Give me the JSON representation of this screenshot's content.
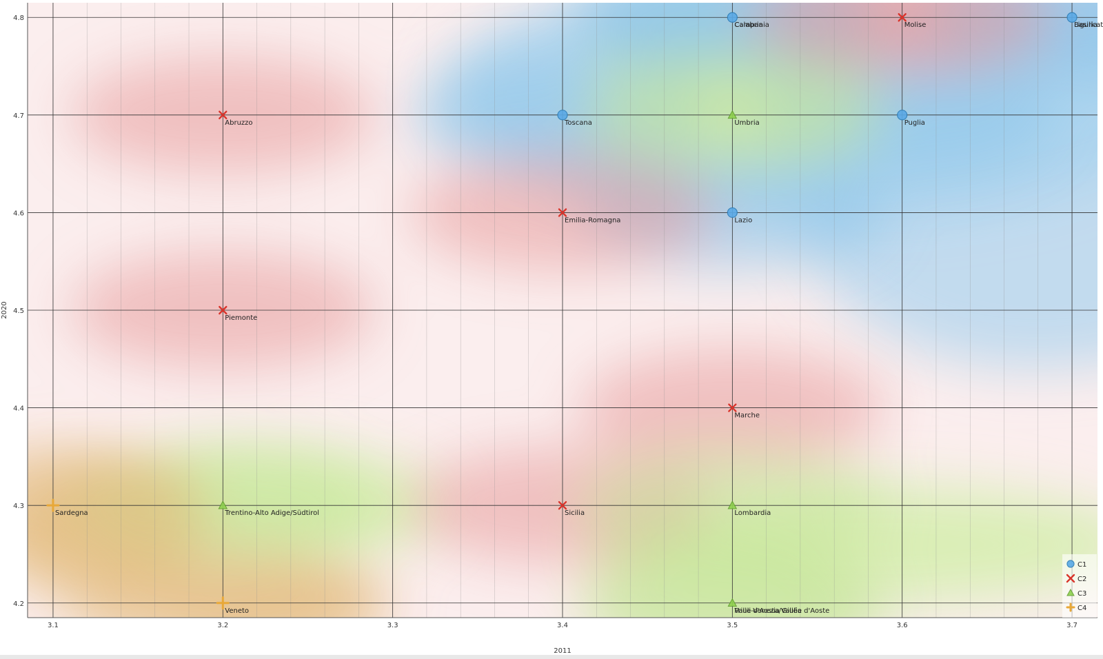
{
  "chart_data": {
    "type": "scatter",
    "xlabel": "2011",
    "ylabel": "2020",
    "xlim": [
      3.085,
      3.715
    ],
    "ylim": [
      4.185,
      4.815
    ],
    "x_ticks": [
      "3.1",
      "3.2",
      "3.3",
      "3.4",
      "3.5",
      "3.6",
      "3.7"
    ],
    "y_ticks": [
      "4.2",
      "4.3",
      "4.4",
      "4.5",
      "4.6",
      "4.7",
      "4.8"
    ],
    "grid": true,
    "legend_position": "bottom-right",
    "series": [
      {
        "name": "C1",
        "marker": "circle",
        "color": "#5aa9e6",
        "points": [
          {
            "label": "Calabria",
            "x": 3.5,
            "y": 4.8
          },
          {
            "label": "Campania",
            "x": 3.5,
            "y": 4.8
          },
          {
            "label": "Basilicata",
            "x": 3.7,
            "y": 4.8
          },
          {
            "label": "Liguria",
            "x": 3.7,
            "y": 4.8
          },
          {
            "label": "Toscana",
            "x": 3.4,
            "y": 4.7
          },
          {
            "label": "Puglia",
            "x": 3.6,
            "y": 4.7
          },
          {
            "label": "Lazio",
            "x": 3.5,
            "y": 4.6
          }
        ]
      },
      {
        "name": "C2",
        "marker": "cross",
        "color": "#d9342b",
        "points": [
          {
            "label": "Molise",
            "x": 3.6,
            "y": 4.8
          },
          {
            "label": "Abruzzo",
            "x": 3.2,
            "y": 4.7
          },
          {
            "label": "Emilia-Romagna",
            "x": 3.4,
            "y": 4.6
          },
          {
            "label": "Piemonte",
            "x": 3.2,
            "y": 4.5
          },
          {
            "label": "Marche",
            "x": 3.5,
            "y": 4.4
          },
          {
            "label": "Sicilia",
            "x": 3.4,
            "y": 4.3
          }
        ]
      },
      {
        "name": "C3",
        "marker": "triangle",
        "color": "#8fd14f",
        "points": [
          {
            "label": "Umbria",
            "x": 3.5,
            "y": 4.7
          },
          {
            "label": "Trentino-Alto Adige/Südtirol",
            "x": 3.2,
            "y": 4.3
          },
          {
            "label": "Lombardia",
            "x": 3.5,
            "y": 4.3
          },
          {
            "label": "Friuli-Venezia Giulia",
            "x": 3.5,
            "y": 4.2
          },
          {
            "label": "Valle d'Aosta/Vallée d'Aoste",
            "x": 3.5,
            "y": 4.2
          }
        ]
      },
      {
        "name": "C4",
        "marker": "plus",
        "color": "#e8a838",
        "points": [
          {
            "label": "Sardegna",
            "x": 3.1,
            "y": 4.3
          },
          {
            "label": "Veneto",
            "x": 3.2,
            "y": 4.2
          }
        ]
      }
    ],
    "region_colors": {
      "C1": "#a9d3ee",
      "C2": "#efb3b3",
      "C3": "#d6eeb0",
      "C4": "#eac99a"
    }
  }
}
